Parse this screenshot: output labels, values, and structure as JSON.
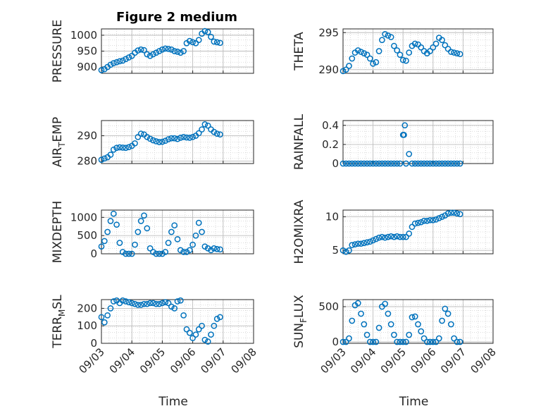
{
  "figure": {
    "title": "Figure 2 medium",
    "xlabel": "Time",
    "x_tick_labels": [
      "09/03",
      "09/04",
      "09/05",
      "09/06",
      "09/07",
      "09/08"
    ],
    "marker_color": "#0072BD"
  },
  "chart_data": [
    {
      "type": "scatter",
      "ylabel": "PRESSURE",
      "ylabel_parts": [
        "PRESSURE"
      ],
      "xlim": [
        3,
        8
      ],
      "ylim": [
        880,
        1020
      ],
      "yticks": [
        900,
        950,
        1000
      ],
      "grid": true,
      "x": [
        3.0,
        3.1,
        3.2,
        3.3,
        3.4,
        3.5,
        3.6,
        3.7,
        3.8,
        3.9,
        4.0,
        4.1,
        4.2,
        4.3,
        4.4,
        4.5,
        4.6,
        4.7,
        4.8,
        4.9,
        5.0,
        5.1,
        5.2,
        5.3,
        5.4,
        5.5,
        5.6,
        5.7,
        5.8,
        5.9,
        6.0,
        6.1,
        6.2,
        6.3,
        6.4,
        6.5,
        6.6,
        6.7,
        6.8,
        6.9
      ],
      "y": [
        890,
        893,
        900,
        907,
        912,
        915,
        918,
        920,
        925,
        930,
        935,
        945,
        952,
        955,
        953,
        940,
        935,
        940,
        945,
        950,
        955,
        958,
        957,
        955,
        950,
        948,
        945,
        950,
        975,
        982,
        978,
        975,
        985,
        1005,
        1013,
        1010,
        995,
        980,
        978,
        976
      ]
    },
    {
      "type": "scatter",
      "ylabel": "THETA",
      "ylabel_parts": [
        "THETA"
      ],
      "xlim": [
        3,
        8
      ],
      "ylim": [
        289.5,
        295.5
      ],
      "yticks": [
        290,
        295
      ],
      "grid": true,
      "x": [
        3.0,
        3.1,
        3.2,
        3.3,
        3.4,
        3.5,
        3.6,
        3.7,
        3.8,
        3.9,
        4.0,
        4.1,
        4.2,
        4.3,
        4.4,
        4.5,
        4.6,
        4.7,
        4.8,
        4.9,
        5.0,
        5.1,
        5.2,
        5.3,
        5.4,
        5.5,
        5.6,
        5.7,
        5.8,
        5.9,
        6.0,
        6.1,
        6.2,
        6.3,
        6.4,
        6.5,
        6.6,
        6.7,
        6.8,
        6.9
      ],
      "y": [
        289.8,
        290.0,
        290.5,
        291.5,
        292.3,
        292.6,
        292.4,
        292.2,
        292.0,
        291.5,
        290.8,
        291.0,
        292.5,
        294.0,
        294.8,
        294.6,
        294.4,
        293.2,
        292.6,
        292.0,
        291.3,
        291.2,
        292.3,
        293.2,
        293.5,
        293.4,
        293.0,
        292.5,
        292.2,
        292.5,
        293.0,
        293.5,
        294.3,
        294.0,
        293.3,
        292.8,
        292.4,
        292.3,
        292.2,
        292.1
      ]
    },
    {
      "type": "scatter",
      "ylabel": "AIR_TEMP",
      "ylabel_parts": [
        "AIR",
        "T",
        "EMP"
      ],
      "xlim": [
        3,
        8
      ],
      "ylim": [
        279,
        296
      ],
      "yticks": [
        280,
        290
      ],
      "grid": true,
      "x": [
        3.0,
        3.1,
        3.2,
        3.3,
        3.4,
        3.5,
        3.6,
        3.7,
        3.8,
        3.9,
        4.0,
        4.1,
        4.2,
        4.3,
        4.4,
        4.5,
        4.6,
        4.7,
        4.8,
        4.9,
        5.0,
        5.1,
        5.2,
        5.3,
        5.4,
        5.5,
        5.6,
        5.7,
        5.8,
        5.9,
        6.0,
        6.1,
        6.2,
        6.3,
        6.4,
        6.5,
        6.6,
        6.7,
        6.8,
        6.9
      ],
      "y": [
        280.5,
        281.0,
        281.5,
        282.5,
        284.5,
        285.2,
        285.4,
        285.3,
        285.2,
        285.5,
        286.0,
        287.0,
        289.5,
        290.8,
        290.5,
        289.5,
        288.8,
        288.2,
        287.8,
        287.5,
        287.6,
        288.0,
        288.6,
        289.0,
        289.0,
        288.7,
        289.2,
        289.5,
        289.3,
        289.2,
        289.5,
        290.0,
        291.0,
        292.5,
        294.5,
        294.0,
        292.5,
        291.5,
        290.8,
        290.5
      ]
    },
    {
      "type": "scatter",
      "ylabel": "RAINFALL",
      "ylabel_parts": [
        "RAINFALL"
      ],
      "xlim": [
        3,
        8
      ],
      "ylim": [
        0,
        0.45
      ],
      "yticks": [
        0,
        0.2,
        0.4
      ],
      "grid": true,
      "x": [
        3.0,
        3.1,
        3.2,
        3.3,
        3.4,
        3.5,
        3.6,
        3.7,
        3.8,
        3.9,
        4.0,
        4.1,
        4.2,
        4.3,
        4.4,
        4.5,
        4.6,
        4.7,
        4.8,
        4.9,
        5.0,
        5.03,
        5.06,
        5.1,
        5.2,
        5.3,
        5.4,
        5.5,
        5.6,
        5.7,
        5.8,
        5.9,
        6.0,
        6.1,
        6.2,
        6.3,
        6.4,
        6.5,
        6.6,
        6.7,
        6.8,
        6.9
      ],
      "y": [
        0,
        0,
        0,
        0,
        0,
        0,
        0,
        0,
        0,
        0,
        0,
        0,
        0,
        0,
        0,
        0,
        0,
        0,
        0,
        0,
        0.3,
        0.3,
        0.4,
        0,
        0.1,
        0,
        0,
        0,
        0,
        0,
        0,
        0,
        0,
        0,
        0,
        0,
        0,
        0,
        0,
        0,
        0,
        0
      ]
    },
    {
      "type": "scatter",
      "ylabel": "MIXDEPTH",
      "ylabel_parts": [
        "MIXDEPTH"
      ],
      "xlim": [
        3,
        8
      ],
      "ylim": [
        0,
        1200
      ],
      "yticks": [
        0,
        500,
        1000
      ],
      "grid": true,
      "x": [
        3.0,
        3.1,
        3.2,
        3.3,
        3.4,
        3.5,
        3.6,
        3.7,
        3.8,
        3.9,
        4.0,
        4.1,
        4.2,
        4.3,
        4.4,
        4.5,
        4.6,
        4.7,
        4.8,
        4.9,
        5.0,
        5.1,
        5.2,
        5.3,
        5.4,
        5.5,
        5.6,
        5.7,
        5.8,
        5.9,
        6.0,
        6.1,
        6.2,
        6.3,
        6.4,
        6.5,
        6.6,
        6.7,
        6.8,
        6.9
      ],
      "y": [
        200,
        350,
        600,
        900,
        1100,
        800,
        300,
        50,
        0,
        0,
        0,
        250,
        600,
        900,
        1050,
        700,
        150,
        50,
        0,
        0,
        0,
        50,
        300,
        600,
        780,
        400,
        100,
        50,
        50,
        100,
        250,
        500,
        850,
        600,
        200,
        150,
        100,
        150,
        130,
        120
      ]
    },
    {
      "type": "scatter",
      "ylabel": "H2OMIXRA",
      "ylabel_parts": [
        "H2OMIXRA"
      ],
      "xlim": [
        3,
        8
      ],
      "ylim": [
        4.5,
        11
      ],
      "yticks": [
        5,
        10
      ],
      "grid": true,
      "x": [
        3.0,
        3.1,
        3.2,
        3.3,
        3.4,
        3.5,
        3.6,
        3.7,
        3.8,
        3.9,
        4.0,
        4.1,
        4.2,
        4.3,
        4.4,
        4.5,
        4.6,
        4.7,
        4.8,
        4.9,
        5.0,
        5.1,
        5.2,
        5.3,
        5.4,
        5.5,
        5.6,
        5.7,
        5.8,
        5.9,
        6.0,
        6.1,
        6.2,
        6.3,
        6.4,
        6.5,
        6.6,
        6.7,
        6.8,
        6.9
      ],
      "y": [
        5.0,
        4.8,
        5.0,
        5.8,
        5.9,
        6.0,
        6.0,
        6.1,
        6.2,
        6.3,
        6.5,
        6.7,
        6.9,
        7.0,
        6.9,
        7.0,
        7.1,
        7.0,
        7.1,
        7.0,
        7.0,
        7.0,
        7.5,
        8.5,
        9.0,
        9.1,
        9.2,
        9.4,
        9.4,
        9.5,
        9.5,
        9.6,
        9.8,
        10.0,
        10.2,
        10.5,
        10.6,
        10.6,
        10.5,
        10.4
      ]
    },
    {
      "type": "scatter",
      "ylabel": "TERR_MSL",
      "ylabel_parts": [
        "TERR",
        "M",
        "SL"
      ],
      "xlim": [
        3,
        8
      ],
      "ylim": [
        0,
        250
      ],
      "yticks": [
        0,
        100,
        200
      ],
      "grid": true,
      "x": [
        3.0,
        3.1,
        3.2,
        3.3,
        3.4,
        3.5,
        3.6,
        3.7,
        3.8,
        3.9,
        4.0,
        4.1,
        4.2,
        4.3,
        4.4,
        4.5,
        4.6,
        4.7,
        4.8,
        4.9,
        5.0,
        5.1,
        5.2,
        5.3,
        5.4,
        5.5,
        5.6,
        5.7,
        5.8,
        5.9,
        6.0,
        6.1,
        6.2,
        6.3,
        6.4,
        6.5,
        6.6,
        6.7,
        6.8,
        6.9
      ],
      "y": [
        150,
        120,
        160,
        200,
        240,
        245,
        230,
        245,
        240,
        235,
        230,
        225,
        220,
        220,
        225,
        225,
        230,
        230,
        225,
        225,
        230,
        235,
        230,
        210,
        200,
        240,
        245,
        160,
        80,
        60,
        30,
        50,
        80,
        100,
        20,
        10,
        50,
        100,
        140,
        150
      ]
    },
    {
      "type": "scatter",
      "ylabel": "SUN_FLUX",
      "ylabel_parts": [
        "SUN",
        "F",
        "LUX"
      ],
      "xlim": [
        3,
        8
      ],
      "ylim": [
        -20,
        600
      ],
      "yticks": [
        0,
        500
      ],
      "grid": true,
      "x": [
        3.0,
        3.1,
        3.2,
        3.3,
        3.4,
        3.5,
        3.6,
        3.7,
        3.8,
        3.9,
        4.0,
        4.1,
        4.2,
        4.3,
        4.4,
        4.5,
        4.6,
        4.7,
        4.8,
        4.9,
        5.0,
        5.1,
        5.2,
        5.3,
        5.4,
        5.5,
        5.6,
        5.7,
        5.8,
        5.9,
        6.0,
        6.1,
        6.2,
        6.3,
        6.4,
        6.5,
        6.6,
        6.7,
        6.8,
        6.9
      ],
      "y": [
        0,
        0,
        50,
        300,
        520,
        550,
        400,
        250,
        100,
        0,
        0,
        0,
        200,
        500,
        540,
        400,
        250,
        100,
        0,
        0,
        0,
        0,
        100,
        350,
        360,
        250,
        150,
        50,
        0,
        0,
        0,
        0,
        50,
        300,
        470,
        400,
        250,
        50,
        0,
        0
      ]
    }
  ]
}
